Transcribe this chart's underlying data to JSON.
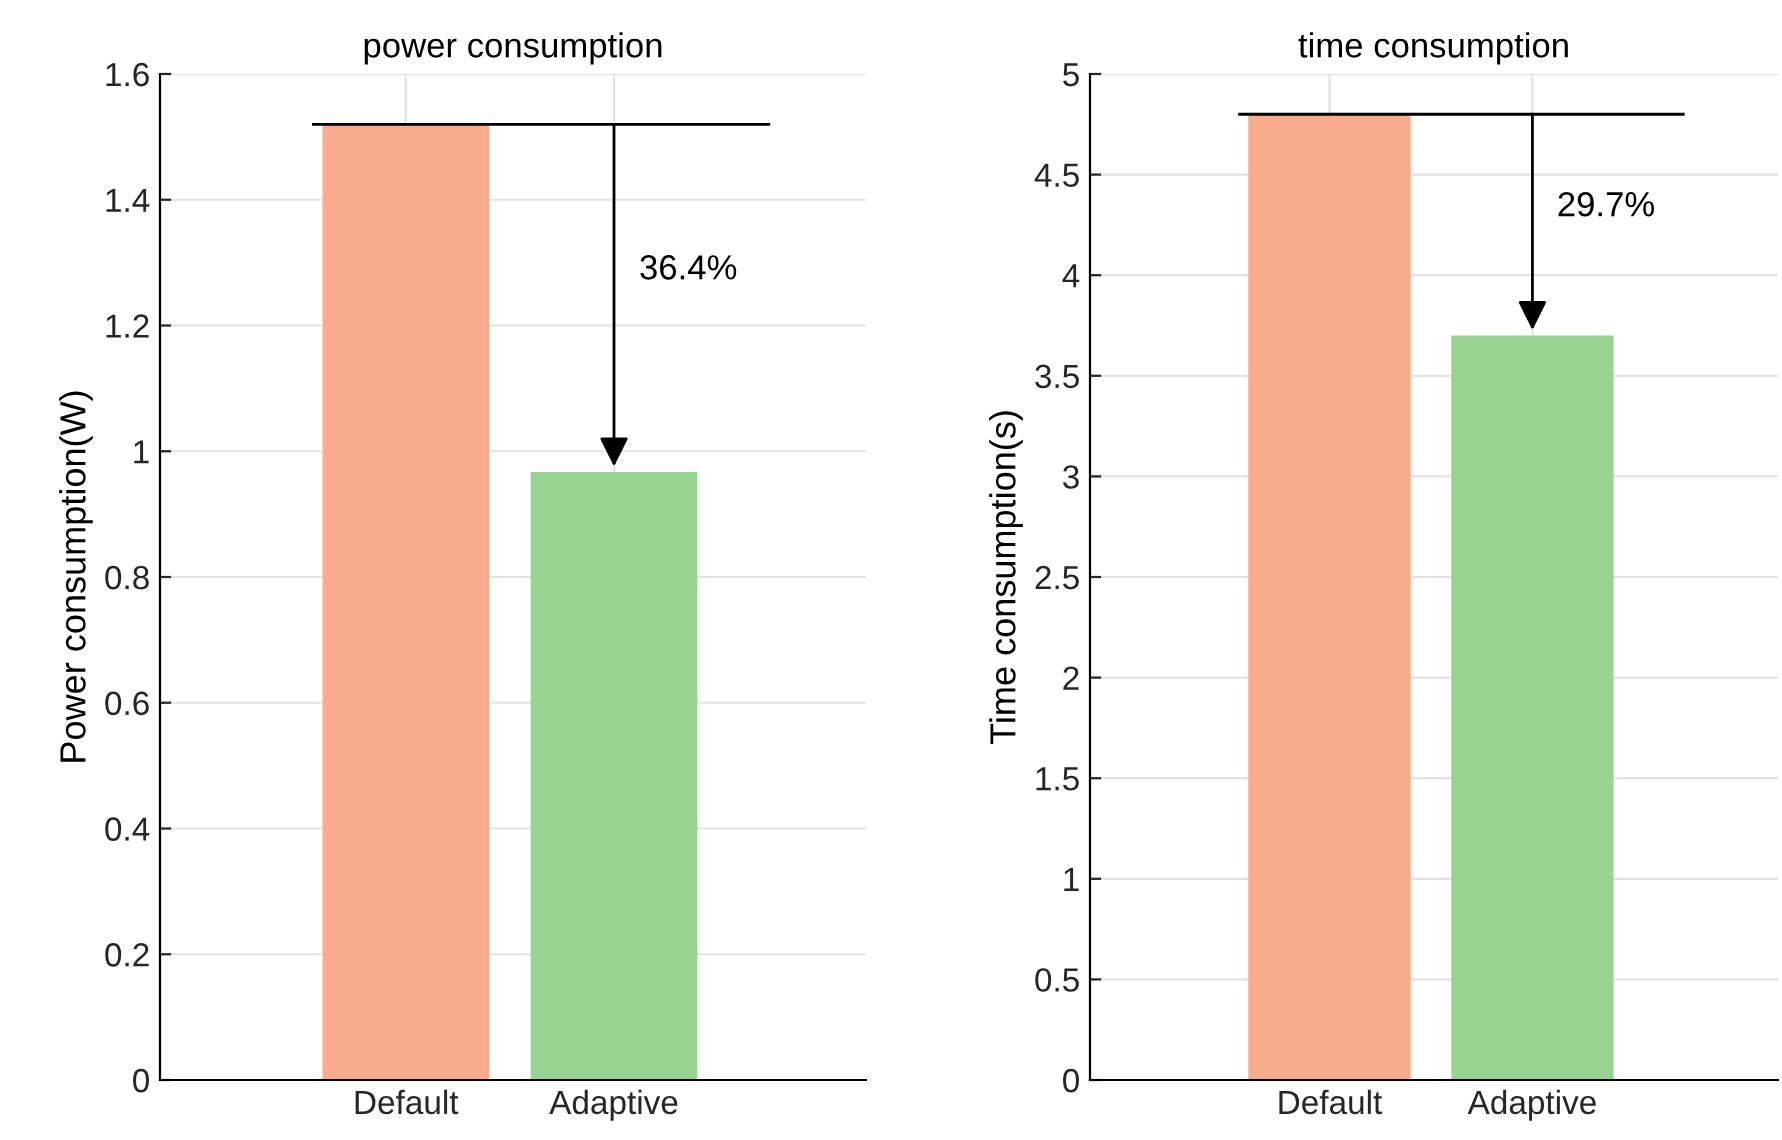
{
  "chart_data": [
    {
      "type": "bar",
      "title": "power consumption",
      "ylabel": "Power consumption(W)",
      "categories": [
        "Default",
        "Adaptive"
      ],
      "values": [
        1.52,
        0.967
      ],
      "colors": [
        "#f9ab8e",
        "#98d491"
      ],
      "ylim": [
        0,
        1.6
      ],
      "yticks": [
        0,
        0.2,
        0.4,
        0.6,
        0.8,
        1,
        1.2,
        1.4,
        1.6
      ],
      "grid": true,
      "ref_lines": [
        {
          "axis": "y",
          "value": 1.52,
          "color": "#000000"
        }
      ],
      "annotations": [
        "36.4%"
      ]
    },
    {
      "type": "bar",
      "title": "time consumption",
      "ylabel": "Time consumption(s)",
      "categories": [
        "Default",
        "Adaptive"
      ],
      "values": [
        4.8,
        3.7
      ],
      "colors": [
        "#f9ab8e",
        "#98d491"
      ],
      "ylim": [
        0,
        5
      ],
      "yticks": [
        0,
        0.5,
        1,
        1.5,
        2,
        2.5,
        3,
        3.5,
        4,
        4.5,
        5
      ],
      "grid": true,
      "ref_lines": [
        {
          "axis": "y",
          "value": 4.8,
          "color": "#000000"
        }
      ],
      "annotations": [
        "29.7%"
      ]
    }
  ]
}
